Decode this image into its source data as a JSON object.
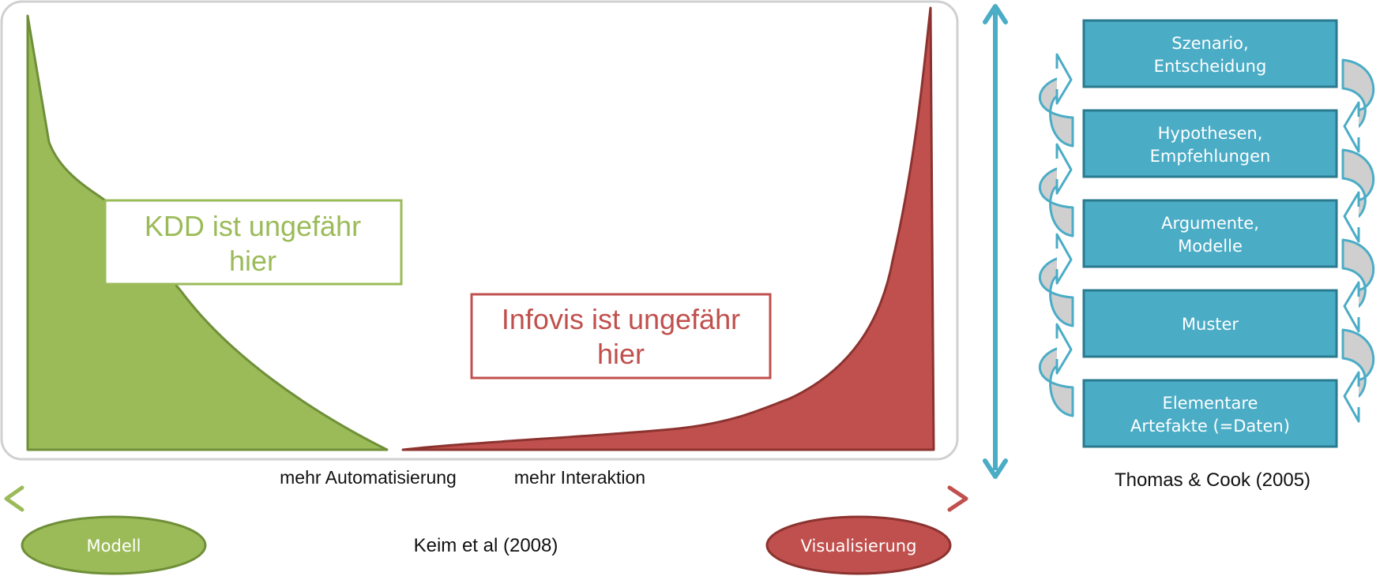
{
  "colors": {
    "green": "#9bbb59",
    "green_dark": "#6f8f38",
    "red": "#c0504d",
    "red_dark": "#8c3330",
    "teal": "#4bacc6",
    "teal_dark": "#2a7a8f",
    "frame": "#d0d0d0",
    "loop_fill": "#cfcfcf"
  },
  "kdd_box": {
    "line1": "KDD ist ungefähr",
    "line2": "hier"
  },
  "infovis_box": {
    "line1": "Infovis ist ungefähr",
    "line2": "hier"
  },
  "axis": {
    "left_label": "mehr Automatisierung",
    "right_label": "mehr Interaktion"
  },
  "ellipses": {
    "left": "Modell",
    "right": "Visualisierung"
  },
  "citations": {
    "keim": "Keim et al (2008)",
    "thomas": "Thomas & Cook (2005)"
  },
  "pipeline": [
    {
      "line1": "Szenario,",
      "line2": "Entscheidung"
    },
    {
      "line1": "Hypothesen,",
      "line2": "Empfehlungen"
    },
    {
      "line1": "Argumente,",
      "line2": "Modelle"
    },
    {
      "line1": "Muster",
      "line2": ""
    },
    {
      "line1": "Elementare",
      "line2": "Artefakte (=Daten)"
    }
  ]
}
